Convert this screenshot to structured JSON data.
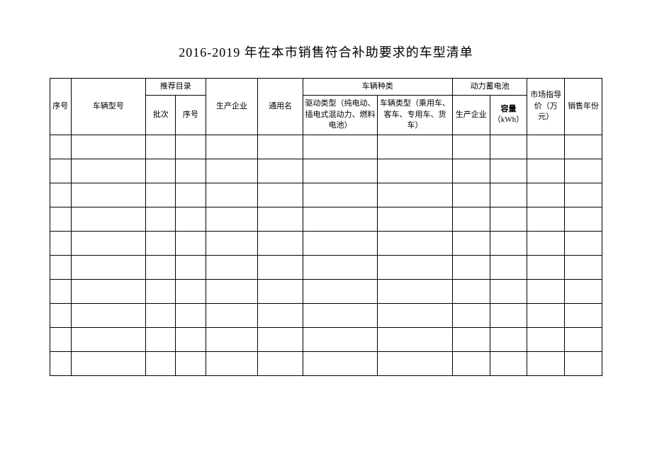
{
  "title": "2016-2019 年在本市销售符合补助要求的车型清单",
  "table": {
    "headers": {
      "seq": "序号",
      "model": "车辆型号",
      "catalog_group": "推荐目录",
      "batch": "批次",
      "order": "序号",
      "mfr": "生产企业",
      "common_name": "通用名",
      "vehicle_kind_group": "车辆种类",
      "drive_type": "驱动类型（纯电动、插电式混动力、燃料电池）",
      "vehicle_type": "车辆类型（乘用车、客车、专用车、货车）",
      "battery_group": "动力蓄电池",
      "battery_mfr": "生产企业",
      "capacity_label": "容量",
      "capacity_unit": "（kWh）",
      "msrp": "市场指导价（万元）",
      "sales_year": "销售年份"
    },
    "columns": [
      "seq",
      "model",
      "batch",
      "order",
      "mfr",
      "common_name",
      "drive_type",
      "vehicle_type",
      "battery_mfr",
      "capacity",
      "msrp",
      "sales_year"
    ],
    "rows": [
      [
        "",
        "",
        "",
        "",
        "",
        "",
        "",
        "",
        "",
        "",
        "",
        ""
      ],
      [
        "",
        "",
        "",
        "",
        "",
        "",
        "",
        "",
        "",
        "",
        "",
        ""
      ],
      [
        "",
        "",
        "",
        "",
        "",
        "",
        "",
        "",
        "",
        "",
        "",
        ""
      ],
      [
        "",
        "",
        "",
        "",
        "",
        "",
        "",
        "",
        "",
        "",
        "",
        ""
      ],
      [
        "",
        "",
        "",
        "",
        "",
        "",
        "",
        "",
        "",
        "",
        "",
        ""
      ],
      [
        "",
        "",
        "",
        "",
        "",
        "",
        "",
        "",
        "",
        "",
        "",
        ""
      ],
      [
        "",
        "",
        "",
        "",
        "",
        "",
        "",
        "",
        "",
        "",
        "",
        ""
      ],
      [
        "",
        "",
        "",
        "",
        "",
        "",
        "",
        "",
        "",
        "",
        "",
        ""
      ],
      [
        "",
        "",
        "",
        "",
        "",
        "",
        "",
        "",
        "",
        "",
        "",
        ""
      ],
      [
        "",
        "",
        "",
        "",
        "",
        "",
        "",
        "",
        "",
        "",
        "",
        ""
      ]
    ],
    "border_color": "#000000",
    "background_color": "#ffffff",
    "title_fontsize": 18,
    "cell_fontsize": 11
  }
}
